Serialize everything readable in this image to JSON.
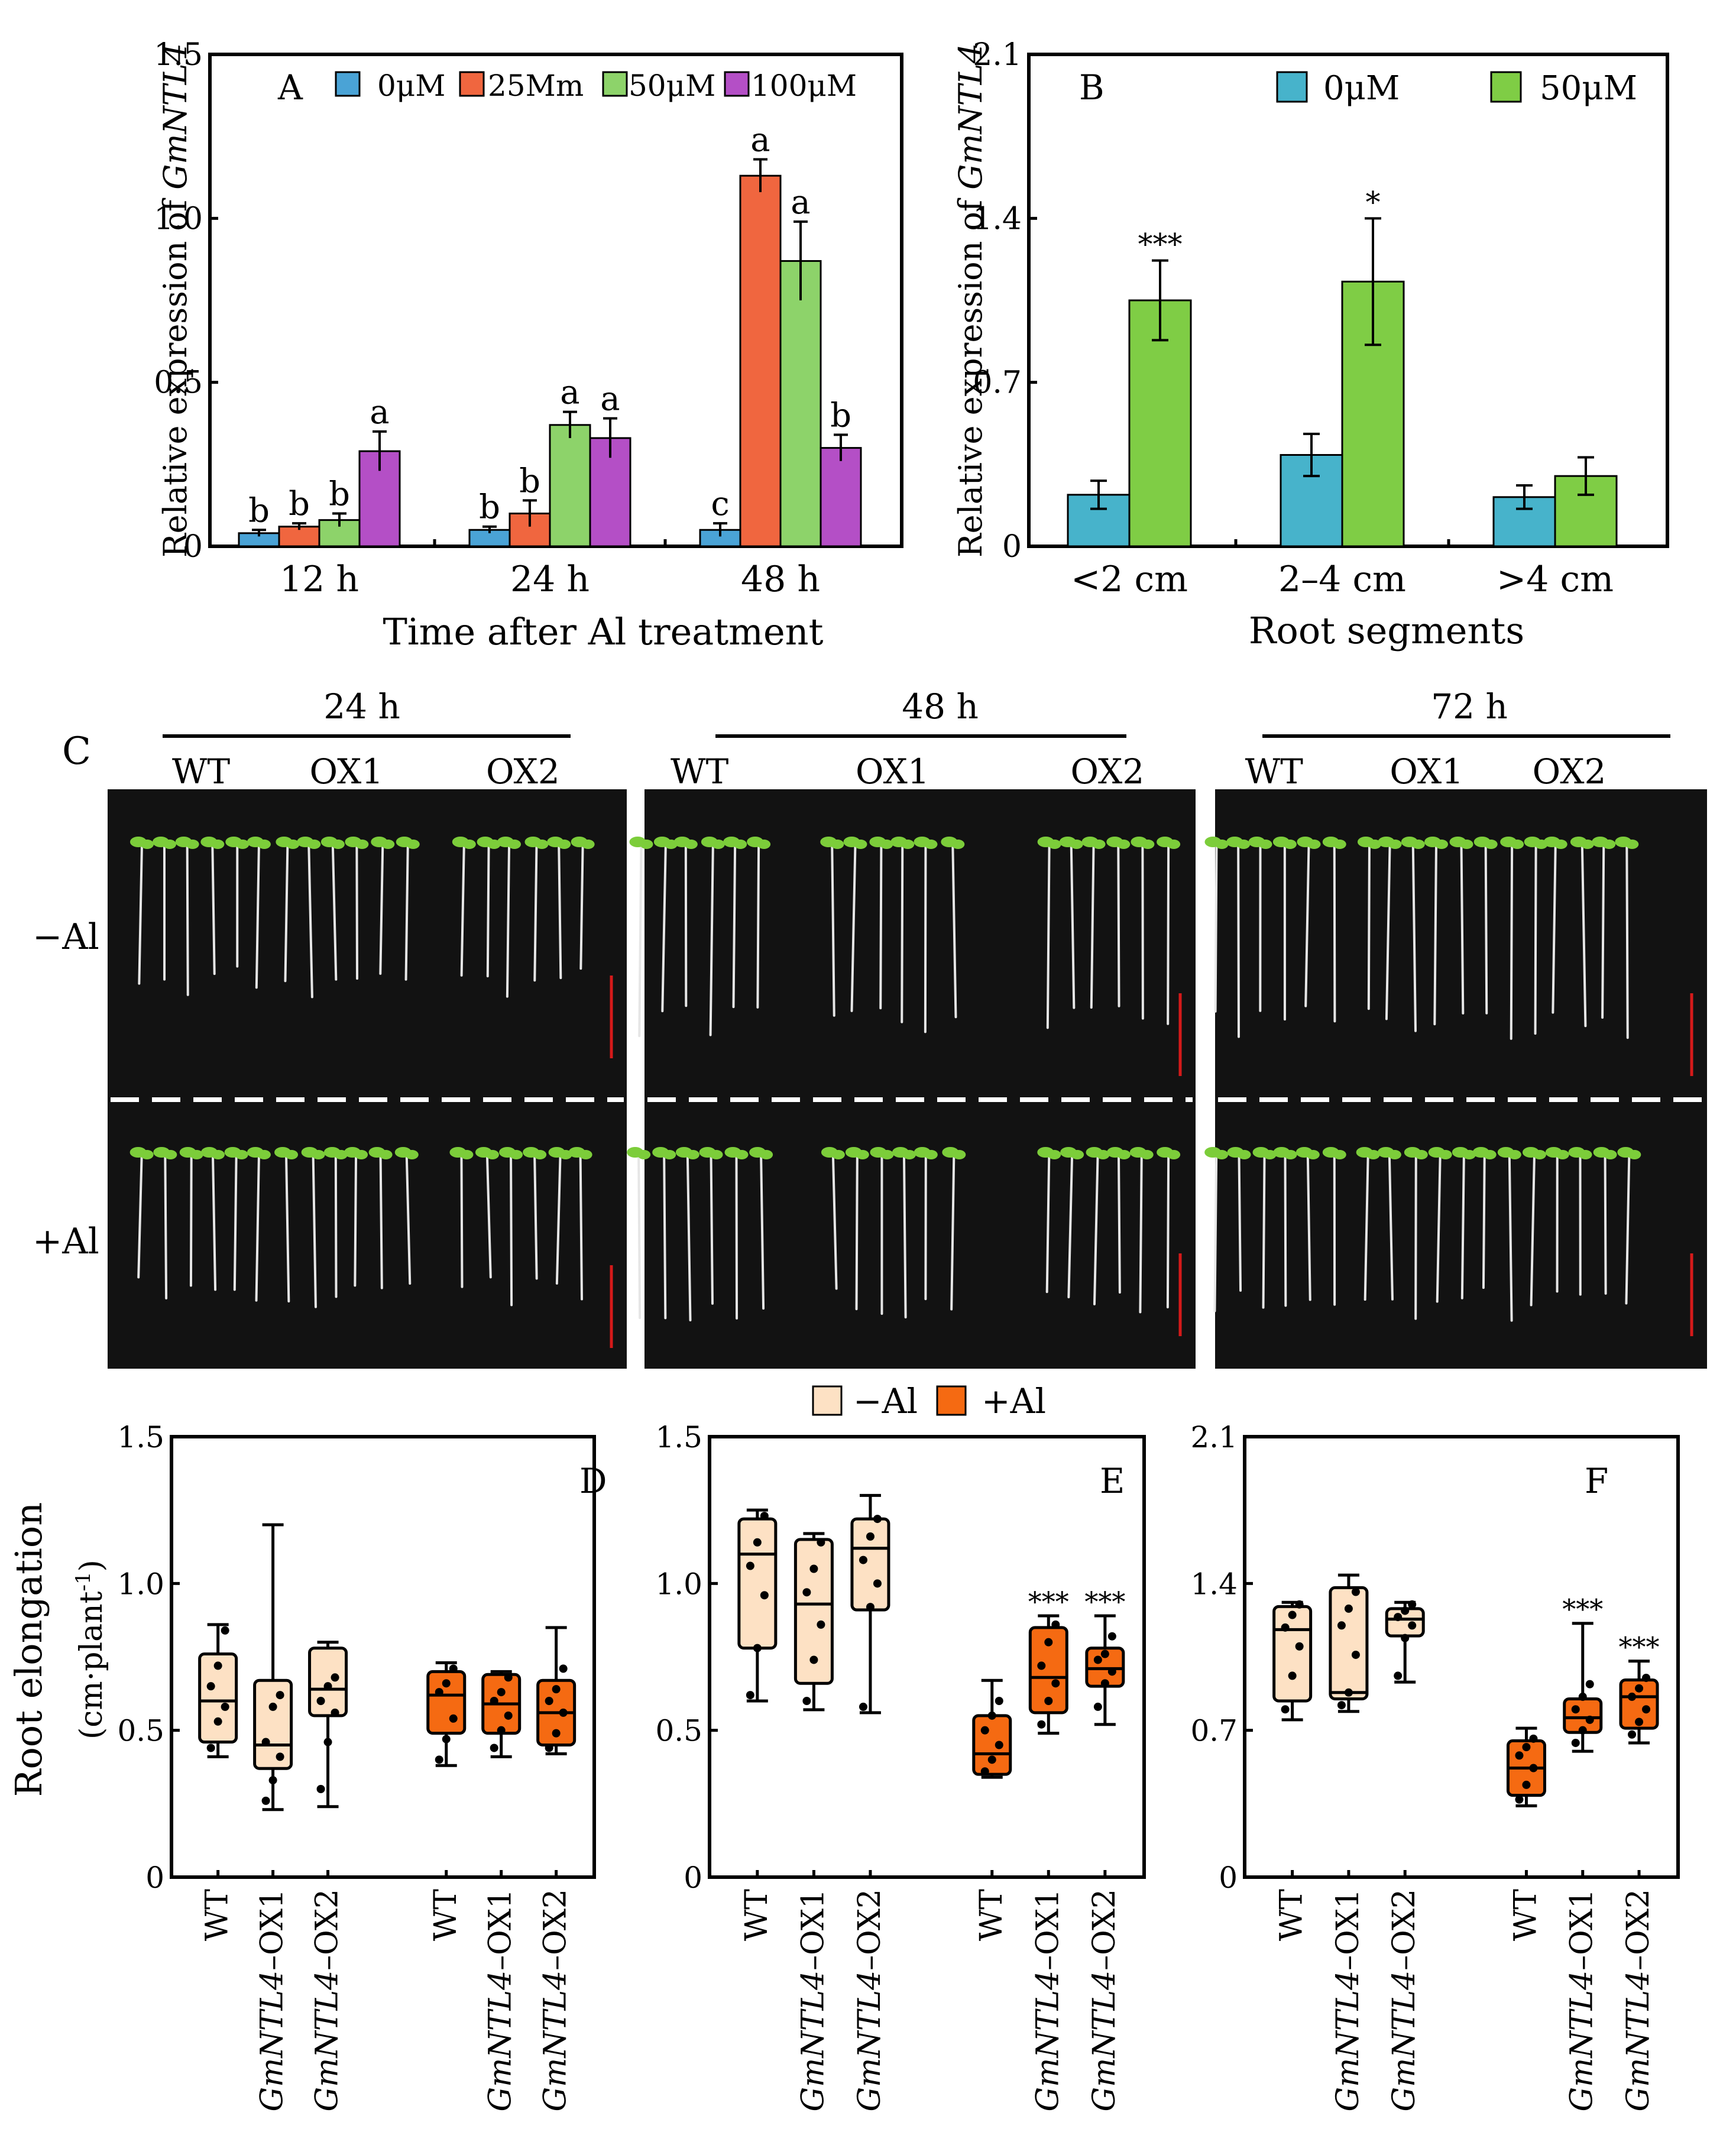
{
  "colors": {
    "c0": "#4aa3d6",
    "c25": "#f0663f",
    "c50": "#8dd36a",
    "c100": "#b44fc6",
    "cB0": "#47b3cb",
    "cB50": "#7fcd45",
    "lightBox": "#fde1c4",
    "darkBox": "#f56a12",
    "sceneBg": "#121212",
    "seedling": "#7ccd3a",
    "root": "#e6e6e6",
    "scale": "#d51a1a"
  },
  "chart_data": [
    {
      "id": "A",
      "type": "bar",
      "panel_label": "A",
      "categories": [
        "12 h",
        "24 h",
        "48 h"
      ],
      "series": [
        {
          "name": "0μM",
          "values": [
            0.04,
            0.05,
            0.05
          ],
          "errors": [
            0.01,
            0.01,
            0.02
          ],
          "letters": [
            "b",
            "b",
            "c"
          ]
        },
        {
          "name": "25Mm",
          "values": [
            0.06,
            0.1,
            1.13
          ],
          "errors": [
            0.01,
            0.04,
            0.05
          ],
          "letters": [
            "b",
            "b",
            "a"
          ]
        },
        {
          "name": "50μM",
          "values": [
            0.08,
            0.37,
            0.87
          ],
          "errors": [
            0.02,
            0.04,
            0.12
          ],
          "letters": [
            "b",
            "a",
            "a"
          ]
        },
        {
          "name": "100μM",
          "values": [
            0.29,
            0.33,
            0.3
          ],
          "errors": [
            0.06,
            0.06,
            0.04
          ],
          "letters": [
            "a",
            "a",
            "b"
          ]
        }
      ],
      "ylim": [
        0,
        1.5
      ],
      "yticks": [
        "0",
        "0.5",
        "1.0",
        "1.5"
      ],
      "ytick_values": [
        0,
        0.5,
        1.0,
        1.5
      ],
      "ylabel_prefix": "Relative expression of ",
      "ylabel_gene": "GmNTL4",
      "xlabel": "Time after Al treatment"
    },
    {
      "id": "B",
      "type": "bar",
      "panel_label": "B",
      "categories": [
        "<2 cm",
        "2–4 cm",
        ">4 cm"
      ],
      "series": [
        {
          "name": "0μM",
          "values": [
            0.22,
            0.39,
            0.21
          ],
          "errors": [
            0.06,
            0.09,
            0.05
          ]
        },
        {
          "name": "50μM",
          "values": [
            1.05,
            1.13,
            0.3
          ],
          "errors": [
            0.17,
            0.27,
            0.08
          ]
        }
      ],
      "significance": [
        "***",
        "*",
        ""
      ],
      "ylim": [
        0,
        2.1
      ],
      "yticks": [
        "0",
        "0.7",
        "1.4",
        "2.1"
      ],
      "ytick_values": [
        0,
        0.7,
        1.4,
        2.1
      ],
      "ylabel_prefix": "Relative expression of ",
      "ylabel_gene": "GmNTL4",
      "xlabel": "Root segments"
    },
    {
      "id": "D",
      "type": "box",
      "panel_label": "D",
      "groups": [
        "WT",
        "GmNTL4–OX1",
        "GmNTL4–OX2",
        "WT",
        "GmNTL4–OX1",
        "GmNTL4–OX2"
      ],
      "treatment": [
        "-Al",
        "-Al",
        "-Al",
        "+Al",
        "+Al",
        "+Al"
      ],
      "min": [
        0.41,
        0.23,
        0.24,
        0.38,
        0.41,
        0.42
      ],
      "q1": [
        0.46,
        0.37,
        0.55,
        0.49,
        0.49,
        0.45
      ],
      "median": [
        0.6,
        0.45,
        0.64,
        0.62,
        0.59,
        0.56
      ],
      "q3": [
        0.76,
        0.67,
        0.78,
        0.7,
        0.69,
        0.67
      ],
      "max": [
        0.86,
        1.2,
        0.8,
        0.73,
        0.7,
        0.85
      ],
      "points": [
        [
          0.44,
          0.53,
          0.58,
          0.65,
          0.72,
          0.84
        ],
        [
          0.26,
          0.33,
          0.41,
          0.46,
          0.58,
          0.62
        ],
        [
          0.3,
          0.46,
          0.56,
          0.6,
          0.65,
          0.68
        ],
        [
          0.4,
          0.47,
          0.54,
          0.63,
          0.66,
          0.71
        ],
        [
          0.44,
          0.5,
          0.55,
          0.6,
          0.63,
          0.68
        ],
        [
          0.44,
          0.49,
          0.56,
          0.6,
          0.64,
          0.71
        ]
      ],
      "significance": [
        "",
        "",
        "",
        "",
        "",
        ""
      ],
      "ylim": [
        0,
        1.5
      ],
      "yticks": [
        "0",
        "0.5",
        "1.0",
        "1.5"
      ],
      "ytick_values": [
        0,
        0.5,
        1.0,
        1.5
      ],
      "ylabel": "Root elongation",
      "yunit_main": "(cm·plant",
      "yunit_sup": "-1",
      "yunit_close": ")"
    },
    {
      "id": "E",
      "type": "box",
      "panel_label": "E",
      "groups": [
        "WT",
        "GmNTL4–OX1",
        "GmNTL4–OX2",
        "WT",
        "GmNTL4–OX1",
        "GmNTL4–OX2"
      ],
      "treatment": [
        "-Al",
        "-Al",
        "-Al",
        "+Al",
        "+Al",
        "+Al"
      ],
      "min": [
        0.6,
        0.57,
        0.56,
        0.34,
        0.49,
        0.52
      ],
      "q1": [
        0.78,
        0.66,
        0.91,
        0.35,
        0.56,
        0.65
      ],
      "median": [
        1.1,
        0.93,
        1.12,
        0.42,
        0.68,
        0.71
      ],
      "q3": [
        1.22,
        1.15,
        1.22,
        0.55,
        0.85,
        0.78
      ],
      "max": [
        1.25,
        1.17,
        1.3,
        0.67,
        0.89,
        0.89
      ],
      "points": [
        [
          0.62,
          0.78,
          0.96,
          1.06,
          1.14,
          1.23
        ],
        [
          0.6,
          0.74,
          0.86,
          0.97,
          1.05,
          1.14
        ],
        [
          0.58,
          0.92,
          1.0,
          1.08,
          1.16,
          1.22
        ],
        [
          0.36,
          0.4,
          0.45,
          0.5,
          0.55,
          0.6
        ],
        [
          0.52,
          0.6,
          0.66,
          0.72,
          0.8,
          0.86
        ],
        [
          0.58,
          0.66,
          0.7,
          0.74,
          0.76,
          0.82
        ]
      ],
      "significance": [
        "",
        "",
        "",
        "",
        "***",
        "***"
      ],
      "ylim": [
        0,
        1.5
      ],
      "yticks": [
        "0",
        "0.5",
        "1.0",
        "1.5"
      ],
      "ytick_values": [
        0,
        0.5,
        1.0,
        1.5
      ]
    },
    {
      "id": "F",
      "type": "box",
      "panel_label": "F",
      "groups": [
        "WT",
        "GmNTL4–OX1",
        "GmNTL4–OX2",
        "WT",
        "GmNTL4–OX1",
        "GmNTL4–OX2"
      ],
      "treatment": [
        "-Al",
        "-Al",
        "-Al",
        "+Al",
        "+Al",
        "+Al"
      ],
      "min": [
        0.75,
        0.79,
        0.93,
        0.34,
        0.6,
        0.64
      ],
      "q1": [
        0.84,
        0.85,
        1.15,
        0.39,
        0.69,
        0.71
      ],
      "median": [
        1.18,
        0.88,
        1.23,
        0.52,
        0.76,
        0.86
      ],
      "q3": [
        1.29,
        1.38,
        1.28,
        0.65,
        0.85,
        0.94
      ],
      "max": [
        1.31,
        1.44,
        1.31,
        0.71,
        1.21,
        1.03
      ],
      "points": [
        [
          0.8,
          0.96,
          1.1,
          1.19,
          1.25,
          1.3
        ],
        [
          0.82,
          0.88,
          1.06,
          1.2,
          1.28,
          1.36
        ],
        [
          0.96,
          1.14,
          1.2,
          1.24,
          1.27,
          1.3
        ],
        [
          0.37,
          0.44,
          0.52,
          0.58,
          0.62,
          0.66
        ],
        [
          0.64,
          0.7,
          0.75,
          0.8,
          0.86,
          0.92
        ],
        [
          0.68,
          0.74,
          0.8,
          0.86,
          0.9,
          0.95
        ]
      ],
      "significance": [
        "",
        "",
        "",
        "",
        "***",
        "***"
      ],
      "ylim": [
        0,
        2.1
      ],
      "yticks": [
        "0",
        "0.7",
        "1.4",
        "2.1"
      ],
      "ytick_values": [
        0,
        0.7,
        1.4,
        2.1
      ]
    }
  ],
  "panelC": {
    "label": "C",
    "times": [
      "24 h",
      "48 h",
      "72 h"
    ],
    "genotypes": [
      "WT",
      "OX1",
      "OX2"
    ],
    "rows": [
      "−Al",
      "+Al"
    ]
  },
  "legend_DEF": {
    "minus": "−Al",
    "plus": "+Al"
  }
}
